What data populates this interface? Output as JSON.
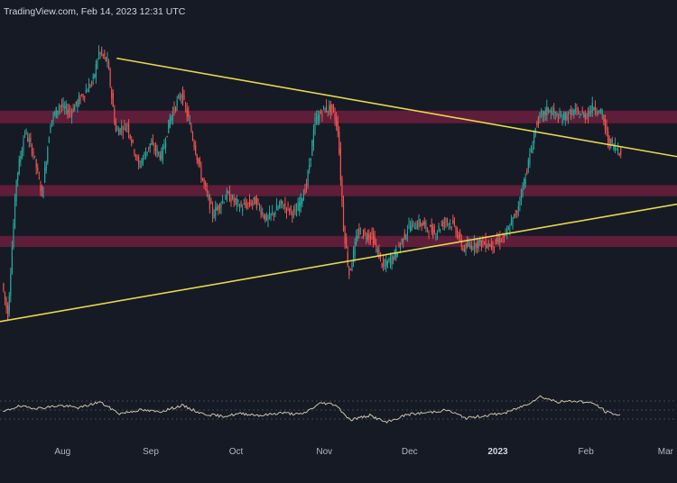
{
  "header": {
    "watermark": "TradingView.com, Feb 14, 2023 12:31 UTC"
  },
  "colors": {
    "background": "#161a25",
    "bull_candle": "#26a69a",
    "bear_candle": "#ef5350",
    "zone_fill": "#6b1f3c",
    "trendline": "#e6d84a",
    "rsi_line": "#c9c1a8",
    "rsi_band_line": "#434651"
  },
  "chart_data": {
    "type": "candlestick",
    "title": "",
    "xlabel": "",
    "ylabel": "",
    "x_tick_labels": [
      {
        "label": "Aug",
        "date": "2022-08-01",
        "bold": false
      },
      {
        "label": "Sep",
        "date": "2022-09-01",
        "bold": false
      },
      {
        "label": "Oct",
        "date": "2022-10-01",
        "bold": false
      },
      {
        "label": "Nov",
        "date": "2022-11-01",
        "bold": false
      },
      {
        "label": "Dec",
        "date": "2022-12-01",
        "bold": false
      },
      {
        "label": "2023",
        "date": "2023-01-01",
        "bold": true
      },
      {
        "label": "Feb",
        "date": "2023-02-01",
        "bold": false
      },
      {
        "label": "Mar",
        "date": "2023-03-01",
        "bold": false
      }
    ],
    "x_range": [
      "2022-07-10",
      "2023-03-05"
    ],
    "y_range": [
      0,
      100
    ],
    "price_path": [
      [
        "2022-07-11",
        22
      ],
      [
        "2022-07-13",
        12
      ],
      [
        "2022-07-16",
        55
      ],
      [
        "2022-07-19",
        70
      ],
      [
        "2022-07-22",
        63
      ],
      [
        "2022-07-25",
        50
      ],
      [
        "2022-07-28",
        73
      ],
      [
        "2022-07-31",
        78
      ],
      [
        "2022-08-04",
        76
      ],
      [
        "2022-08-08",
        81
      ],
      [
        "2022-08-12",
        86
      ],
      [
        "2022-08-14",
        95
      ],
      [
        "2022-08-17",
        92
      ],
      [
        "2022-08-20",
        70
      ],
      [
        "2022-08-24",
        72
      ],
      [
        "2022-08-28",
        59
      ],
      [
        "2022-09-01",
        66
      ],
      [
        "2022-09-05",
        62
      ],
      [
        "2022-09-08",
        74
      ],
      [
        "2022-09-12",
        82
      ],
      [
        "2022-09-15",
        72
      ],
      [
        "2022-09-19",
        56
      ],
      [
        "2022-09-23",
        44
      ],
      [
        "2022-09-28",
        50
      ],
      [
        "2022-10-03",
        46
      ],
      [
        "2022-10-08",
        48
      ],
      [
        "2022-10-12",
        42
      ],
      [
        "2022-10-17",
        47
      ],
      [
        "2022-10-22",
        44
      ],
      [
        "2022-10-26",
        53
      ],
      [
        "2022-10-29",
        73
      ],
      [
        "2022-11-01",
        77
      ],
      [
        "2022-11-04",
        77
      ],
      [
        "2022-11-06",
        71
      ],
      [
        "2022-11-08",
        40
      ],
      [
        "2022-11-10",
        25
      ],
      [
        "2022-11-13",
        38
      ],
      [
        "2022-11-18",
        37
      ],
      [
        "2022-11-22",
        27
      ],
      [
        "2022-11-26",
        31
      ],
      [
        "2022-12-01",
        40
      ],
      [
        "2022-12-05",
        41
      ],
      [
        "2022-12-10",
        38
      ],
      [
        "2022-12-14",
        42
      ],
      [
        "2022-12-17",
        40
      ],
      [
        "2022-12-20",
        33
      ],
      [
        "2022-12-26",
        35
      ],
      [
        "2022-12-30",
        34
      ],
      [
        "2023-01-04",
        37
      ],
      [
        "2023-01-08",
        45
      ],
      [
        "2023-01-12",
        60
      ],
      [
        "2023-01-15",
        73
      ],
      [
        "2023-01-19",
        77
      ],
      [
        "2023-01-23",
        74
      ],
      [
        "2023-01-28",
        76
      ],
      [
        "2023-02-01",
        75
      ],
      [
        "2023-02-04",
        78
      ],
      [
        "2023-02-07",
        75
      ],
      [
        "2023-02-09",
        67
      ],
      [
        "2023-02-13",
        64
      ]
    ],
    "zones": [
      {
        "low": 72.5,
        "high": 76.5
      },
      {
        "low": 49.5,
        "high": 53
      },
      {
        "low": 33.5,
        "high": 37
      }
    ],
    "trendlines": [
      {
        "start": [
          "2022-08-20",
          93
        ],
        "end": [
          "2023-03-05",
          62
        ]
      },
      {
        "start": [
          "2022-07-10",
          10
        ],
        "end": [
          "2023-03-05",
          47
        ]
      }
    ],
    "rsi": {
      "y_range": [
        0,
        100
      ],
      "bands": [
        70,
        50,
        30
      ],
      "path": [
        [
          "2022-07-11",
          45
        ],
        [
          "2022-07-16",
          58
        ],
        [
          "2022-07-24",
          54
        ],
        [
          "2022-07-31",
          60
        ],
        [
          "2022-08-07",
          55
        ],
        [
          "2022-08-14",
          68
        ],
        [
          "2022-08-21",
          42
        ],
        [
          "2022-08-28",
          50
        ],
        [
          "2022-09-04",
          46
        ],
        [
          "2022-09-12",
          60
        ],
        [
          "2022-09-19",
          42
        ],
        [
          "2022-09-26",
          36
        ],
        [
          "2022-10-03",
          42
        ],
        [
          "2022-10-10",
          38
        ],
        [
          "2022-10-17",
          44
        ],
        [
          "2022-10-24",
          40
        ],
        [
          "2022-10-31",
          66
        ],
        [
          "2022-11-05",
          62
        ],
        [
          "2022-11-10",
          28
        ],
        [
          "2022-11-17",
          38
        ],
        [
          "2022-11-23",
          22
        ],
        [
          "2022-11-30",
          40
        ],
        [
          "2022-12-07",
          44
        ],
        [
          "2022-12-14",
          50
        ],
        [
          "2022-12-21",
          32
        ],
        [
          "2022-12-28",
          38
        ],
        [
          "2023-01-04",
          44
        ],
        [
          "2023-01-11",
          62
        ],
        [
          "2023-01-16",
          80
        ],
        [
          "2023-01-22",
          68
        ],
        [
          "2023-01-29",
          70
        ],
        [
          "2023-02-04",
          64
        ],
        [
          "2023-02-08",
          46
        ],
        [
          "2023-02-13",
          38
        ]
      ]
    },
    "grid": false
  }
}
